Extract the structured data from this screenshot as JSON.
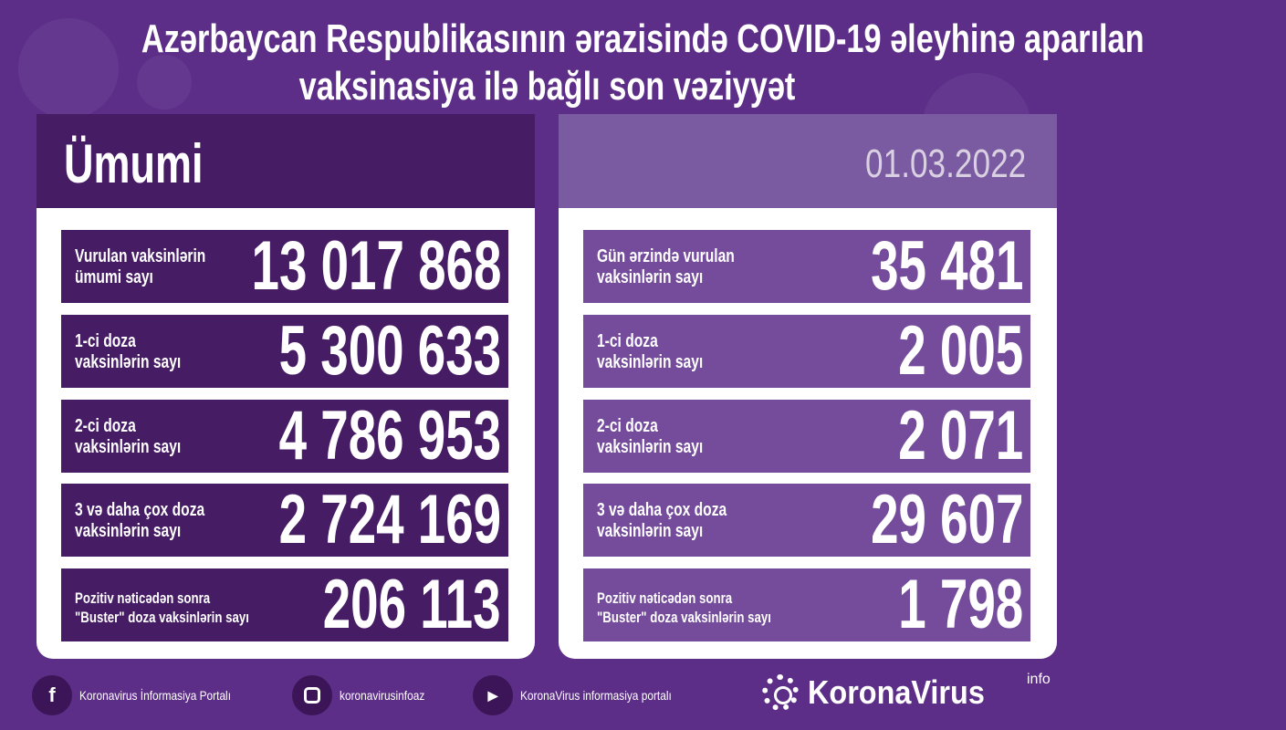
{
  "title": {
    "line1": "Azərbaycan Respublikasının ərazisində COVID-19 əleyhinə aparılan",
    "line2": "vaksinasiya ilə bağlı son vəziyyət"
  },
  "left": {
    "heading": "Ümumi",
    "rows": [
      {
        "label1": "Vurulan vaksinlərin",
        "label2": "ümumi sayı",
        "value": "13 017 868"
      },
      {
        "label1": "1-ci doza",
        "label2": "vaksinlərin sayı",
        "value": "5 300 633"
      },
      {
        "label1": "2-ci doza",
        "label2": "vaksinlərin sayı",
        "value": "4 786 953"
      },
      {
        "label1": "3 və daha çox doza",
        "label2": "vaksinlərin sayı",
        "value": "2 724 169"
      },
      {
        "label1": "Pozitiv nəticədən sonra",
        "label2": "\"Buster\" doza vaksinlərin sayı",
        "value": "206 113"
      }
    ]
  },
  "right": {
    "date": "01.03.2022",
    "rows": [
      {
        "label1": "Gün ərzində vurulan",
        "label2": "vaksinlərin sayı",
        "value": "35 481"
      },
      {
        "label1": "1-ci doza",
        "label2": "vaksinlərin sayı",
        "value": "2 005"
      },
      {
        "label1": "2-ci doza",
        "label2": "vaksinlərin sayı",
        "value": "2 071"
      },
      {
        "label1": "3 və daha çox doza",
        "label2": "vaksinlərin sayı",
        "value": "29 607"
      },
      {
        "label1": "Pozitiv nəticədən sonra",
        "label2": "\"Buster\" doza vaksinlərin sayı",
        "value": "1 798"
      }
    ]
  },
  "footer": {
    "facebook": "Koronavirus İnformasiya Portalı",
    "instagram": "koronavirusinfoaz",
    "youtube": "KoronaVirus informasiya portalı",
    "logo": "KoronaVirus",
    "logo_sup": "info"
  },
  "colors": {
    "background": "#5c2e87",
    "left_panel": "#461c65",
    "right_panel": "#744c9b"
  }
}
